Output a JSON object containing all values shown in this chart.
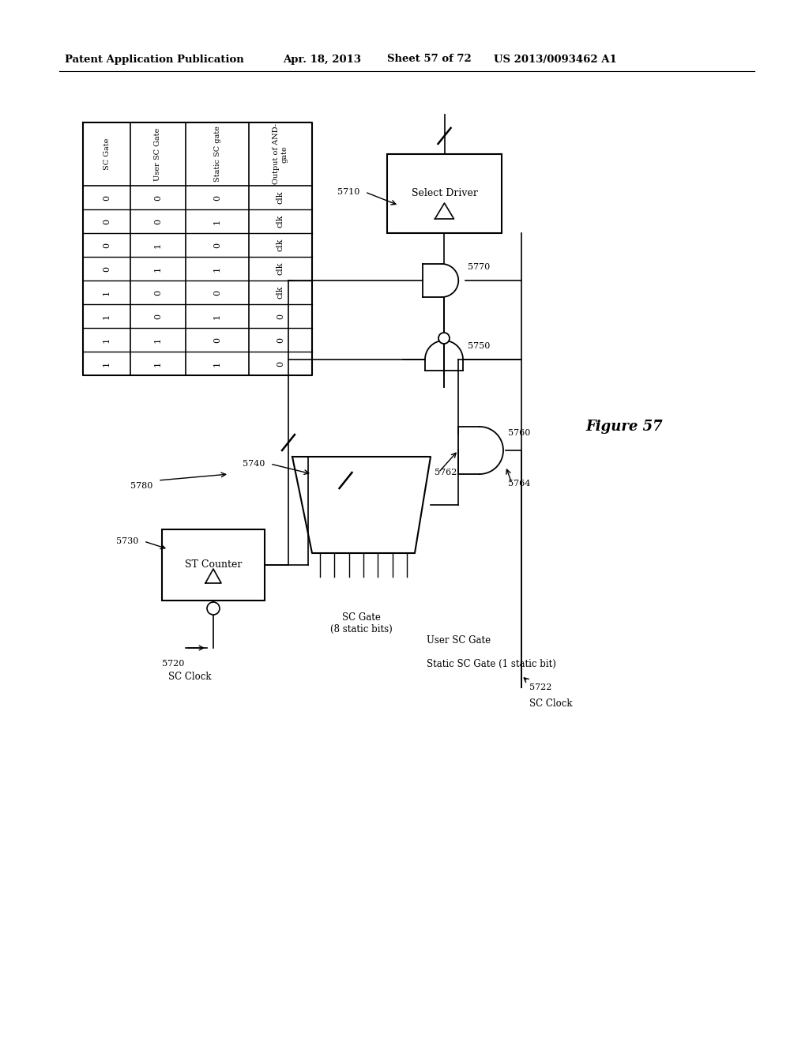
{
  "header_text": "Patent Application Publication",
  "header_date": "Apr. 18, 2013",
  "header_sheet": "Sheet 57 of 72",
  "header_patent": "US 2013/0093462 A1",
  "figure_label": "Figure 57",
  "table": {
    "col_headers": [
      "SC Gate",
      "User SC Gate",
      "Static SC gate",
      "Output of AND-\ngate"
    ],
    "rows": [
      [
        "0",
        "0",
        "0",
        "clk"
      ],
      [
        "0",
        "0",
        "1",
        "clk"
      ],
      [
        "0",
        "1",
        "0",
        "clk"
      ],
      [
        "0",
        "1",
        "1",
        "clk"
      ],
      [
        "1",
        "0",
        "0",
        "clk"
      ],
      [
        "1",
        "0",
        "1",
        "0"
      ],
      [
        "1",
        "1",
        "0",
        "0"
      ],
      [
        "1",
        "1",
        "1",
        "0"
      ]
    ]
  },
  "labels": {
    "5710": "5710",
    "5720": "5720",
    "5722": "5722",
    "5730": "5730",
    "5740": "5740",
    "5750": "5750",
    "5760": "5760",
    "5762": "5762",
    "5764": "5764",
    "5770": "5770",
    "5780": "5780",
    "select_driver": "Select Driver",
    "st_counter": "ST Counter",
    "sc_clock1": "SC Clock",
    "sc_clock2": "SC Clock",
    "sc_gate_label": "SC Gate\n(8 static bits)",
    "user_sc_gate_label": "User SC Gate",
    "static_sc_gate_label": "Static SC Gate (1 static bit)"
  }
}
